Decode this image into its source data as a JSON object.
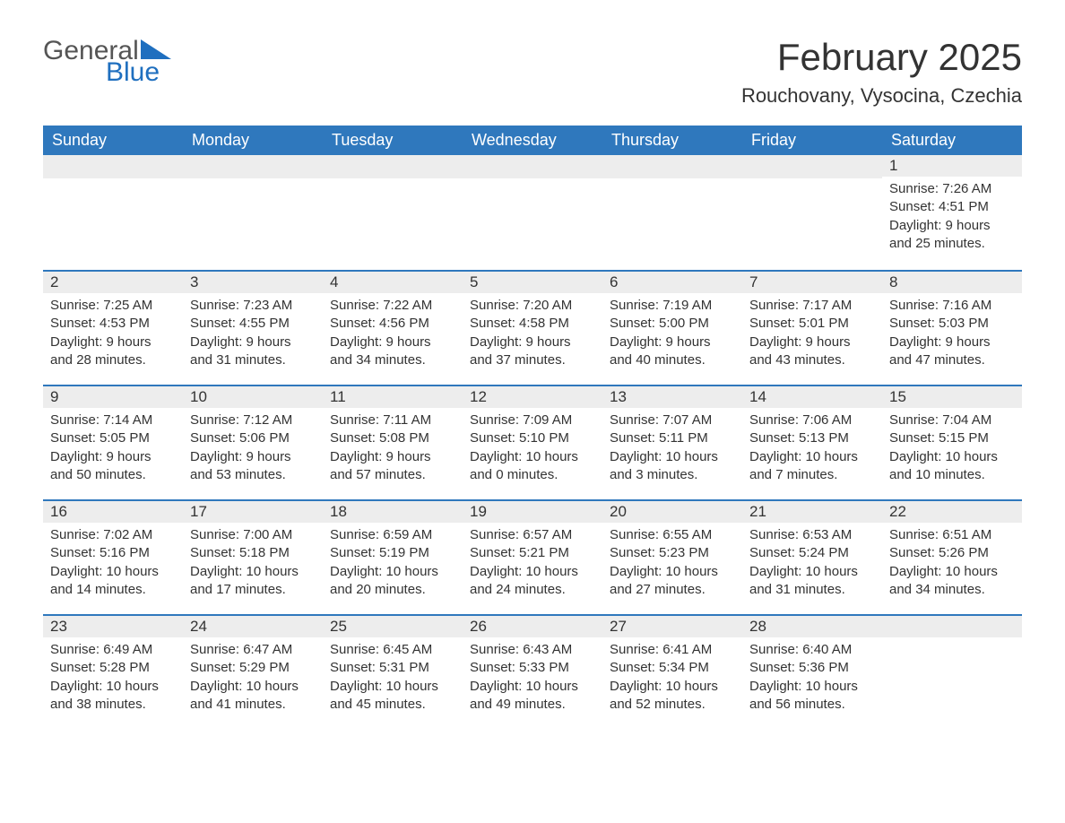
{
  "logo": {
    "word1": "General",
    "word2": "Blue",
    "color1": "#555555",
    "color2": "#1f6fbf"
  },
  "title": "February 2025",
  "location": "Rouchovany, Vysocina, Czechia",
  "colors": {
    "header_bg": "#2f78bd",
    "header_fg": "#ffffff",
    "daynum_bg": "#ededed",
    "rule": "#2f78bd",
    "text": "#333333",
    "page_bg": "#ffffff"
  },
  "weekdays": [
    "Sunday",
    "Monday",
    "Tuesday",
    "Wednesday",
    "Thursday",
    "Friday",
    "Saturday"
  ],
  "weeks": [
    [
      null,
      null,
      null,
      null,
      null,
      null,
      {
        "n": "1",
        "sunrise": "7:26 AM",
        "sunset": "4:51 PM",
        "daylight": "9 hours and 25 minutes."
      }
    ],
    [
      {
        "n": "2",
        "sunrise": "7:25 AM",
        "sunset": "4:53 PM",
        "daylight": "9 hours and 28 minutes."
      },
      {
        "n": "3",
        "sunrise": "7:23 AM",
        "sunset": "4:55 PM",
        "daylight": "9 hours and 31 minutes."
      },
      {
        "n": "4",
        "sunrise": "7:22 AM",
        "sunset": "4:56 PM",
        "daylight": "9 hours and 34 minutes."
      },
      {
        "n": "5",
        "sunrise": "7:20 AM",
        "sunset": "4:58 PM",
        "daylight": "9 hours and 37 minutes."
      },
      {
        "n": "6",
        "sunrise": "7:19 AM",
        "sunset": "5:00 PM",
        "daylight": "9 hours and 40 minutes."
      },
      {
        "n": "7",
        "sunrise": "7:17 AM",
        "sunset": "5:01 PM",
        "daylight": "9 hours and 43 minutes."
      },
      {
        "n": "8",
        "sunrise": "7:16 AM",
        "sunset": "5:03 PM",
        "daylight": "9 hours and 47 minutes."
      }
    ],
    [
      {
        "n": "9",
        "sunrise": "7:14 AM",
        "sunset": "5:05 PM",
        "daylight": "9 hours and 50 minutes."
      },
      {
        "n": "10",
        "sunrise": "7:12 AM",
        "sunset": "5:06 PM",
        "daylight": "9 hours and 53 minutes."
      },
      {
        "n": "11",
        "sunrise": "7:11 AM",
        "sunset": "5:08 PM",
        "daylight": "9 hours and 57 minutes."
      },
      {
        "n": "12",
        "sunrise": "7:09 AM",
        "sunset": "5:10 PM",
        "daylight": "10 hours and 0 minutes."
      },
      {
        "n": "13",
        "sunrise": "7:07 AM",
        "sunset": "5:11 PM",
        "daylight": "10 hours and 3 minutes."
      },
      {
        "n": "14",
        "sunrise": "7:06 AM",
        "sunset": "5:13 PM",
        "daylight": "10 hours and 7 minutes."
      },
      {
        "n": "15",
        "sunrise": "7:04 AM",
        "sunset": "5:15 PM",
        "daylight": "10 hours and 10 minutes."
      }
    ],
    [
      {
        "n": "16",
        "sunrise": "7:02 AM",
        "sunset": "5:16 PM",
        "daylight": "10 hours and 14 minutes."
      },
      {
        "n": "17",
        "sunrise": "7:00 AM",
        "sunset": "5:18 PM",
        "daylight": "10 hours and 17 minutes."
      },
      {
        "n": "18",
        "sunrise": "6:59 AM",
        "sunset": "5:19 PM",
        "daylight": "10 hours and 20 minutes."
      },
      {
        "n": "19",
        "sunrise": "6:57 AM",
        "sunset": "5:21 PM",
        "daylight": "10 hours and 24 minutes."
      },
      {
        "n": "20",
        "sunrise": "6:55 AM",
        "sunset": "5:23 PM",
        "daylight": "10 hours and 27 minutes."
      },
      {
        "n": "21",
        "sunrise": "6:53 AM",
        "sunset": "5:24 PM",
        "daylight": "10 hours and 31 minutes."
      },
      {
        "n": "22",
        "sunrise": "6:51 AM",
        "sunset": "5:26 PM",
        "daylight": "10 hours and 34 minutes."
      }
    ],
    [
      {
        "n": "23",
        "sunrise": "6:49 AM",
        "sunset": "5:28 PM",
        "daylight": "10 hours and 38 minutes."
      },
      {
        "n": "24",
        "sunrise": "6:47 AM",
        "sunset": "5:29 PM",
        "daylight": "10 hours and 41 minutes."
      },
      {
        "n": "25",
        "sunrise": "6:45 AM",
        "sunset": "5:31 PM",
        "daylight": "10 hours and 45 minutes."
      },
      {
        "n": "26",
        "sunrise": "6:43 AM",
        "sunset": "5:33 PM",
        "daylight": "10 hours and 49 minutes."
      },
      {
        "n": "27",
        "sunrise": "6:41 AM",
        "sunset": "5:34 PM",
        "daylight": "10 hours and 52 minutes."
      },
      {
        "n": "28",
        "sunrise": "6:40 AM",
        "sunset": "5:36 PM",
        "daylight": "10 hours and 56 minutes."
      },
      null
    ]
  ],
  "labels": {
    "sunrise": "Sunrise: ",
    "sunset": "Sunset: ",
    "daylight": "Daylight: "
  }
}
